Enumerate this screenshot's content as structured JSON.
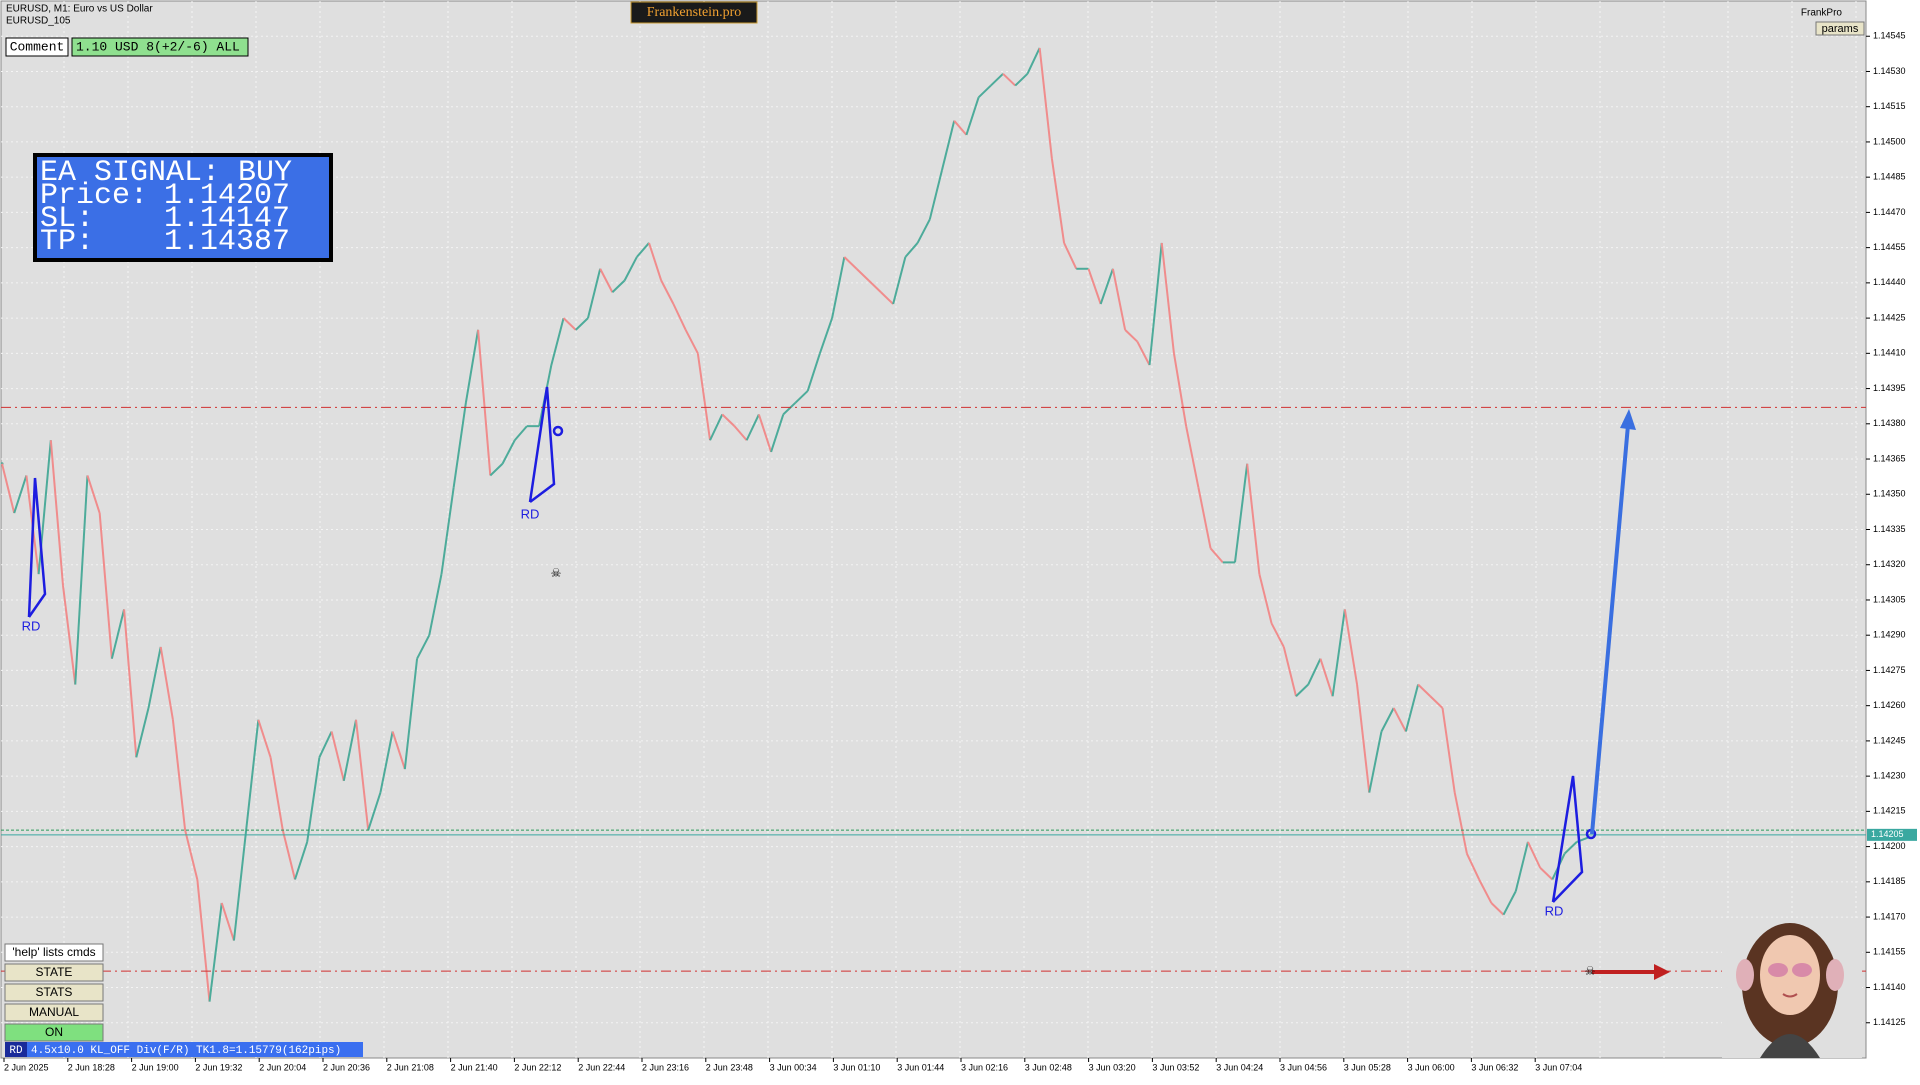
{
  "window": {
    "symbol": "EURUSD, M1:  Euro vs US Dollar",
    "sub": "EURUSD_105",
    "brand": "Frankenstein.pro",
    "account": "FrankPro",
    "params": "params"
  },
  "comment": {
    "label": "Comment",
    "text": "1.10 USD 8(+2/-6) ALL"
  },
  "signal": {
    "title": "EA SIGNAL: BUY",
    "rows": [
      {
        "label": "Price:",
        "value": 1.14207
      },
      {
        "label": "SL:",
        "value": 1.14147
      },
      {
        "label": "TP:",
        "value": 1.14387
      }
    ]
  },
  "buttons": [
    "'help' lists cmds",
    "STATE",
    "STATS",
    "MANUAL",
    "ON"
  ],
  "status": {
    "tag": "RD",
    "text": "4.5x10.0 KL_OFF Div(F/R) TK1.8=1.15779(162pips)"
  },
  "patterns": [
    "RD",
    "RD",
    "RD"
  ],
  "chart_data": {
    "type": "line",
    "values": [
      1.14363,
      1.14342,
      1.14358,
      1.14316,
      1.14373,
      1.14311,
      1.14269,
      1.14358,
      1.14342,
      1.1428,
      1.14301,
      1.14238,
      1.14259,
      1.14285,
      1.14254,
      1.14207,
      1.14186,
      1.14134,
      1.14176,
      1.1416,
      1.14207,
      1.14254,
      1.14238,
      1.14207,
      1.14186,
      1.14202,
      1.14238,
      1.14249,
      1.14228,
      1.14254,
      1.14207,
      1.14223,
      1.14249,
      1.14233,
      1.1428,
      1.1429,
      1.14316,
      1.14353,
      1.14389,
      1.1442,
      1.14358,
      1.14363,
      1.14373,
      1.14379,
      1.14379,
      1.14405,
      1.14425,
      1.1442,
      1.14425,
      1.14446,
      1.14436,
      1.14441,
      1.14451,
      1.14457,
      1.14441,
      1.14431,
      1.1442,
      1.1441,
      1.14373,
      1.14384,
      1.14379,
      1.14373,
      1.14384,
      1.14368,
      1.14384,
      1.14389,
      1.14394,
      1.1441,
      1.14425,
      1.14451,
      1.14446,
      1.14441,
      1.14436,
      1.14431,
      1.14451,
      1.14457,
      1.14467,
      1.14488,
      1.14509,
      1.14503,
      1.14519,
      1.14524,
      1.14529,
      1.14524,
      1.14529,
      1.1454,
      1.14493,
      1.14457,
      1.14446,
      1.14446,
      1.14431,
      1.14446,
      1.1442,
      1.14415,
      1.14405,
      1.14457,
      1.1441,
      1.14379,
      1.14353,
      1.14327,
      1.14321,
      1.14321,
      1.14363,
      1.14316,
      1.14295,
      1.14285,
      1.14264,
      1.14269,
      1.1428,
      1.14264,
      1.14301,
      1.14269,
      1.14223,
      1.14249,
      1.14259,
      1.14249,
      1.14269,
      1.14264,
      1.14259,
      1.14223,
      1.14197,
      1.14186,
      1.14176,
      1.14171,
      1.14181,
      1.14202,
      1.14191,
      1.14186,
      1.14197,
      1.14202,
      1.14204
    ],
    "colors": {
      "up": "#4dab9a",
      "down": "#f08c8c"
    },
    "bid": {
      "value": 1.14205,
      "label": "1.14205"
    },
    "xtick_labels": [
      "2 Jun 2025",
      "2 Jun 18:28",
      "2 Jun 19:00",
      "2 Jun 19:32",
      "2 Jun 20:04",
      "2 Jun 20:36",
      "2 Jun 21:08",
      "2 Jun 21:40",
      "2 Jun 22:12",
      "2 Jun 22:44",
      "2 Jun 23:16",
      "2 Jun 23:48",
      "3 Jun 00:34",
      "3 Jun 01:10",
      "3 Jun 01:44",
      "3 Jun 02:16",
      "3 Jun 02:48",
      "3 Jun 03:20",
      "3 Jun 03:52",
      "3 Jun 04:24",
      "3 Jun 04:56",
      "3 Jun 05:28",
      "3 Jun 06:00",
      "3 Jun 06:32",
      "3 Jun 07:04"
    ],
    "ylim": [
      1.1411,
      1.1456
    ],
    "yticks": [
      1.14125,
      {
        "value": 1.1414,
        "label": "1.14140"
      },
      1.14155,
      {
        "value": 1.1417,
        "label": "1.14170"
      },
      1.14185,
      {
        "value": 1.142,
        "label": "1.14200"
      },
      1.14215,
      {
        "value": 1.1423,
        "label": "1.14230"
      },
      1.14245,
      {
        "value": 1.1426,
        "label": "1.14260"
      },
      1.14275,
      {
        "value": 1.1429,
        "label": "1.14290"
      },
      1.14305,
      {
        "value": 1.1432,
        "label": "1.14320"
      },
      1.14335,
      {
        "value": 1.1435,
        "label": "1.14350"
      },
      1.14365,
      {
        "value": 1.1438,
        "label": "1.14380"
      },
      1.14395,
      {
        "value": 1.1441,
        "label": "1.14410"
      },
      1.14425,
      {
        "value": 1.1444,
        "label": "1.14440"
      },
      1.14455,
      {
        "value": 1.1447,
        "label": "1.14470"
      },
      1.14485,
      {
        "value": 1.145,
        "label": "1.14500"
      },
      1.14515,
      {
        "value": 1.1453,
        "label": "1.14530"
      },
      1.14545
    ],
    "grid": true
  }
}
